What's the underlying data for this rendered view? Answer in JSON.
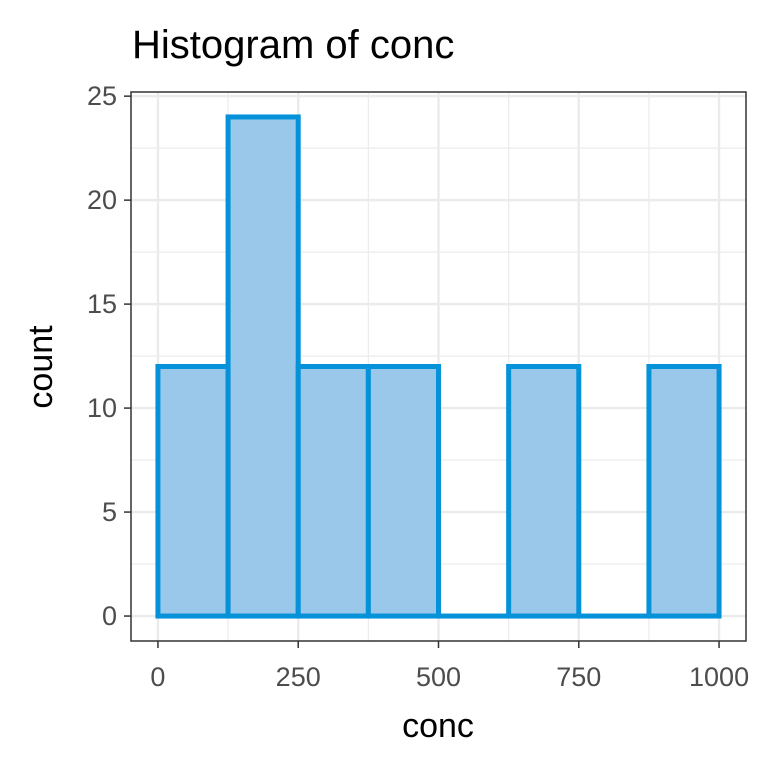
{
  "chart_data": {
    "type": "bar",
    "title": "Histogram of conc",
    "xlabel": "conc",
    "ylabel": "count",
    "bins": [
      {
        "x0": 0,
        "x1": 125,
        "count": 12
      },
      {
        "x0": 125,
        "x1": 250,
        "count": 24
      },
      {
        "x0": 250,
        "x1": 375,
        "count": 12
      },
      {
        "x0": 375,
        "x1": 500,
        "count": 12
      },
      {
        "x0": 500,
        "x1": 625,
        "count": 0
      },
      {
        "x0": 625,
        "x1": 750,
        "count": 12
      },
      {
        "x0": 750,
        "x1": 875,
        "count": 0
      },
      {
        "x0": 875,
        "x1": 1000,
        "count": 12
      }
    ],
    "xlim": [
      -48,
      1048
    ],
    "ylim": [
      -1.2,
      25.2
    ],
    "x_ticks": [
      0,
      250,
      500,
      750,
      1000
    ],
    "x_tick_labels": [
      "0",
      "250",
      "500",
      "750",
      "1000"
    ],
    "y_ticks": [
      0,
      5,
      10,
      15,
      20,
      25
    ],
    "y_tick_labels": [
      "0",
      "5",
      "10",
      "15",
      "20",
      "25"
    ],
    "grid": true,
    "colors": {
      "bar_fill": "#9ac8ea",
      "bar_stroke": "#0592d9",
      "grid": "#ebebeb",
      "panel_border": "#333333",
      "tick_label": "#4d4d4d"
    }
  }
}
